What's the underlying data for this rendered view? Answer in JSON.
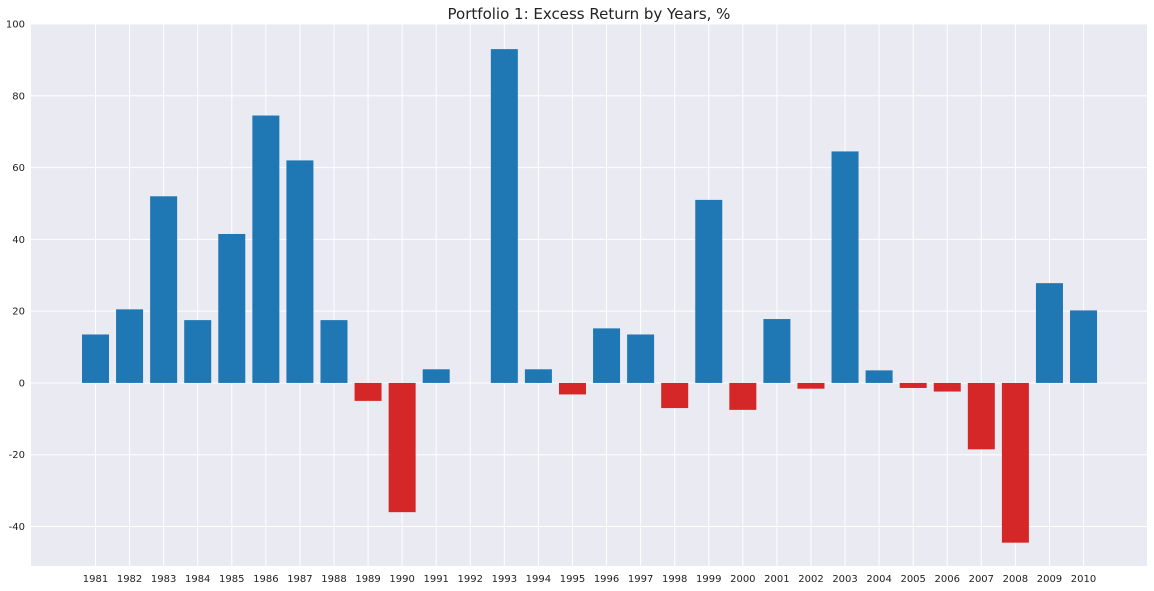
{
  "chart_data": {
    "type": "bar",
    "title": "Portfolio 1: Excess Return by Years, %",
    "xlabel": "",
    "ylabel": "",
    "categories": [
      "1981",
      "1982",
      "1983",
      "1984",
      "1985",
      "1986",
      "1987",
      "1988",
      "1989",
      "1990",
      "1991",
      "1992",
      "1993",
      "1994",
      "1995",
      "1996",
      "1997",
      "1998",
      "1999",
      "2000",
      "2001",
      "2002",
      "2003",
      "2004",
      "2005",
      "2006",
      "2007",
      "2008",
      "2009",
      "2010"
    ],
    "values": [
      13.5,
      20.5,
      52.0,
      17.5,
      41.5,
      74.5,
      62.0,
      17.5,
      -5.0,
      -36.0,
      3.8,
      0.0,
      93.0,
      3.8,
      -3.2,
      15.2,
      13.5,
      -7.0,
      51.0,
      -7.5,
      17.8,
      -1.6,
      64.5,
      3.5,
      -1.4,
      -2.4,
      -18.5,
      -44.5,
      27.8,
      20.2
    ],
    "ylim": [
      -51,
      100
    ],
    "yticks": [
      -40,
      -20,
      0,
      20,
      40,
      60,
      80,
      100
    ],
    "positive_color": "#1f77b4",
    "negative_color": "#d62728",
    "background_color": "#eaeaf2",
    "grid_color": "#ffffff",
    "grid": true,
    "legend": "none"
  }
}
